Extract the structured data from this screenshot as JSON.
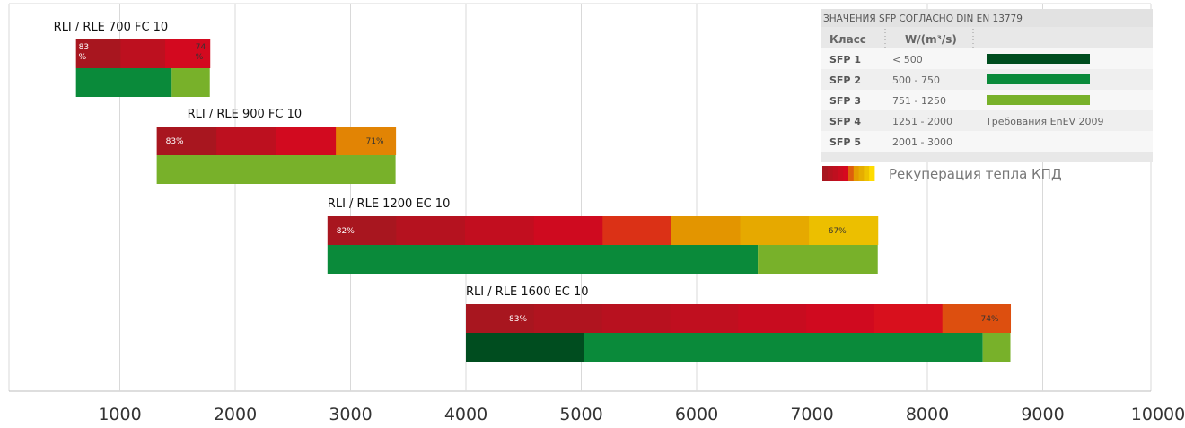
{
  "chart_data": {
    "type": "bar",
    "xlim": [
      0,
      10000
    ],
    "x_ticks": [
      "1000",
      "2000",
      "3000",
      "4000",
      "5000",
      "6000",
      "7000",
      "8000",
      "9000",
      "10000"
    ],
    "grid": true,
    "units": [
      {
        "name": "RLI / RLE 700 FC 10",
        "x_start": 620,
        "x_end": 1780,
        "heat_recovery": {
          "max_label": "83\n%",
          "min_label": "74\n%",
          "max": 83,
          "min": 74
        },
        "sfp_segments": [
          {
            "class": "SFP 2",
            "from": 620,
            "to": 1450
          },
          {
            "class": "SFP 3",
            "from": 1450,
            "to": 1780
          }
        ]
      },
      {
        "name": "RLI / RLE 900 FC 10",
        "x_start": 1320,
        "x_end": 3390,
        "heat_recovery": {
          "max_label": "83%",
          "min_label": "71%",
          "max": 83,
          "min": 71
        },
        "sfp_segments": [
          {
            "class": "SFP 3",
            "from": 1320,
            "to": 3390
          }
        ]
      },
      {
        "name": "RLI / RLE 1200 EC 10",
        "x_start": 2800,
        "x_end": 7570,
        "heat_recovery": {
          "max_label": "82%",
          "min_label": "67%",
          "max": 82,
          "min": 67
        },
        "sfp_segments": [
          {
            "class": "SFP 2",
            "from": 2800,
            "to": 6530
          },
          {
            "class": "SFP 3",
            "from": 6530,
            "to": 7570
          }
        ]
      },
      {
        "name": "RLI / RLE 1600 EC 10",
        "x_start": 4000,
        "x_end": 8720,
        "heat_recovery": {
          "max_label": "83%",
          "min_label": "74%",
          "max": 83,
          "min": 74
        },
        "sfp_segments": [
          {
            "class": "SFP 1",
            "from": 4000,
            "to": 5020
          },
          {
            "class": "SFP 2",
            "from": 5020,
            "to": 8480
          },
          {
            "class": "SFP 3",
            "from": 8480,
            "to": 8720
          }
        ]
      }
    ],
    "legend": {
      "placement": "top-right",
      "title": "ЗНАЧЕНИЯ SFP СОГЛАСНО DIN EN 13779",
      "col_class": "Класс",
      "col_unit": "W/(m³/s)",
      "rows": [
        {
          "class": "SFP 1",
          "range": "<  500",
          "color": "#004d1f",
          "note": ""
        },
        {
          "class": "SFP 2",
          "range": "500 -  750",
          "color": "#0a8a3a",
          "note": ""
        },
        {
          "class": "SFP 3",
          "range": "751 - 1250",
          "color": "#78b12a",
          "note": ""
        },
        {
          "class": "SFP 4",
          "range": "1251 - 2000",
          "color": "",
          "note": "Требования EnEV 2009"
        },
        {
          "class": "SFP 5",
          "range": "2001 - 3000",
          "color": "",
          "note": ""
        }
      ],
      "heat_label": "Рекуперация тепла  КПД"
    },
    "colors": {
      "sfp1": "#004d1f",
      "sfp2": "#0a8a3a",
      "sfp3": "#78b12a",
      "heat_red_dark": "#a8161f",
      "heat_red": "#d7081f",
      "heat_orange": "#e39400",
      "heat_yellow": "#ffdc00"
    }
  }
}
